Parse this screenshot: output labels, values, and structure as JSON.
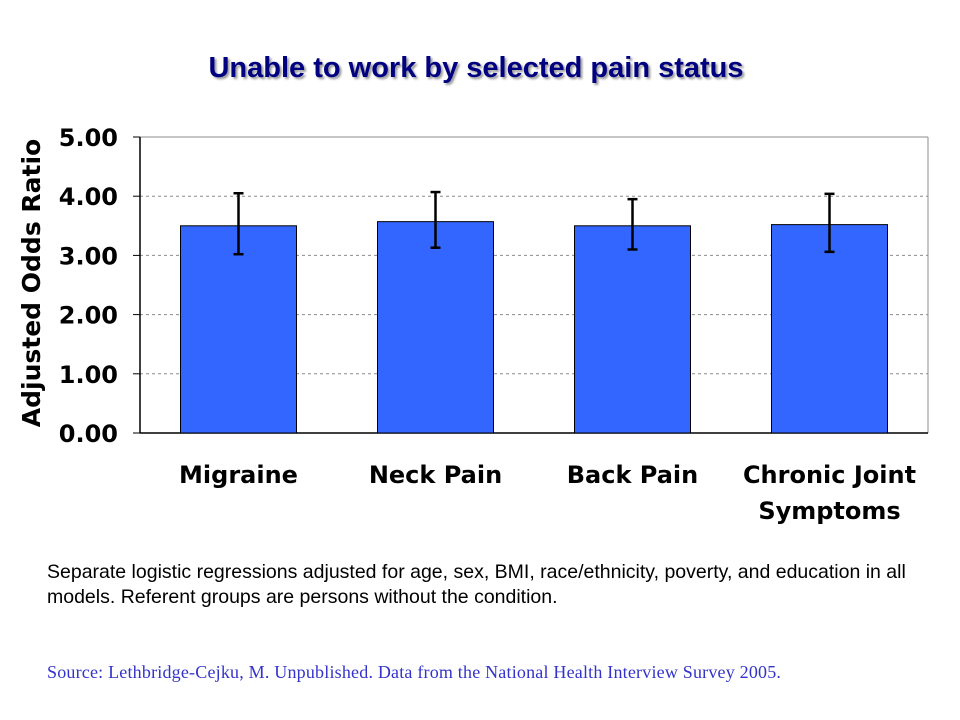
{
  "chart_data": {
    "type": "bar",
    "title": "Unable to work by selected pain status",
    "ylabel": "Adjusted Odds Ratio",
    "xlabel": "",
    "ylim": [
      0,
      5
    ],
    "yticks": [
      "0.00",
      "1.00",
      "2.00",
      "3.00",
      "4.00",
      "5.00"
    ],
    "categories": [
      [
        "Migraine"
      ],
      [
        "Neck Pain"
      ],
      [
        "Back Pain"
      ],
      [
        "Chronic Joint",
        "Symptoms"
      ]
    ],
    "values": [
      3.5,
      3.57,
      3.5,
      3.52
    ],
    "error_low": [
      3.02,
      3.13,
      3.1,
      3.06
    ],
    "error_high": [
      4.05,
      4.07,
      3.95,
      4.04
    ],
    "grid": "horizontal dashed",
    "bar_color": "#3366ff"
  },
  "note": "Separate logistic regressions adjusted for age, sex, BMI, race/ethnicity, poverty, and education in all models. Referent groups are persons without the condition.",
  "source": "Source:  Lethbridge-Cejku, M. Unpublished. Data from the National Health Interview Survey 2005."
}
